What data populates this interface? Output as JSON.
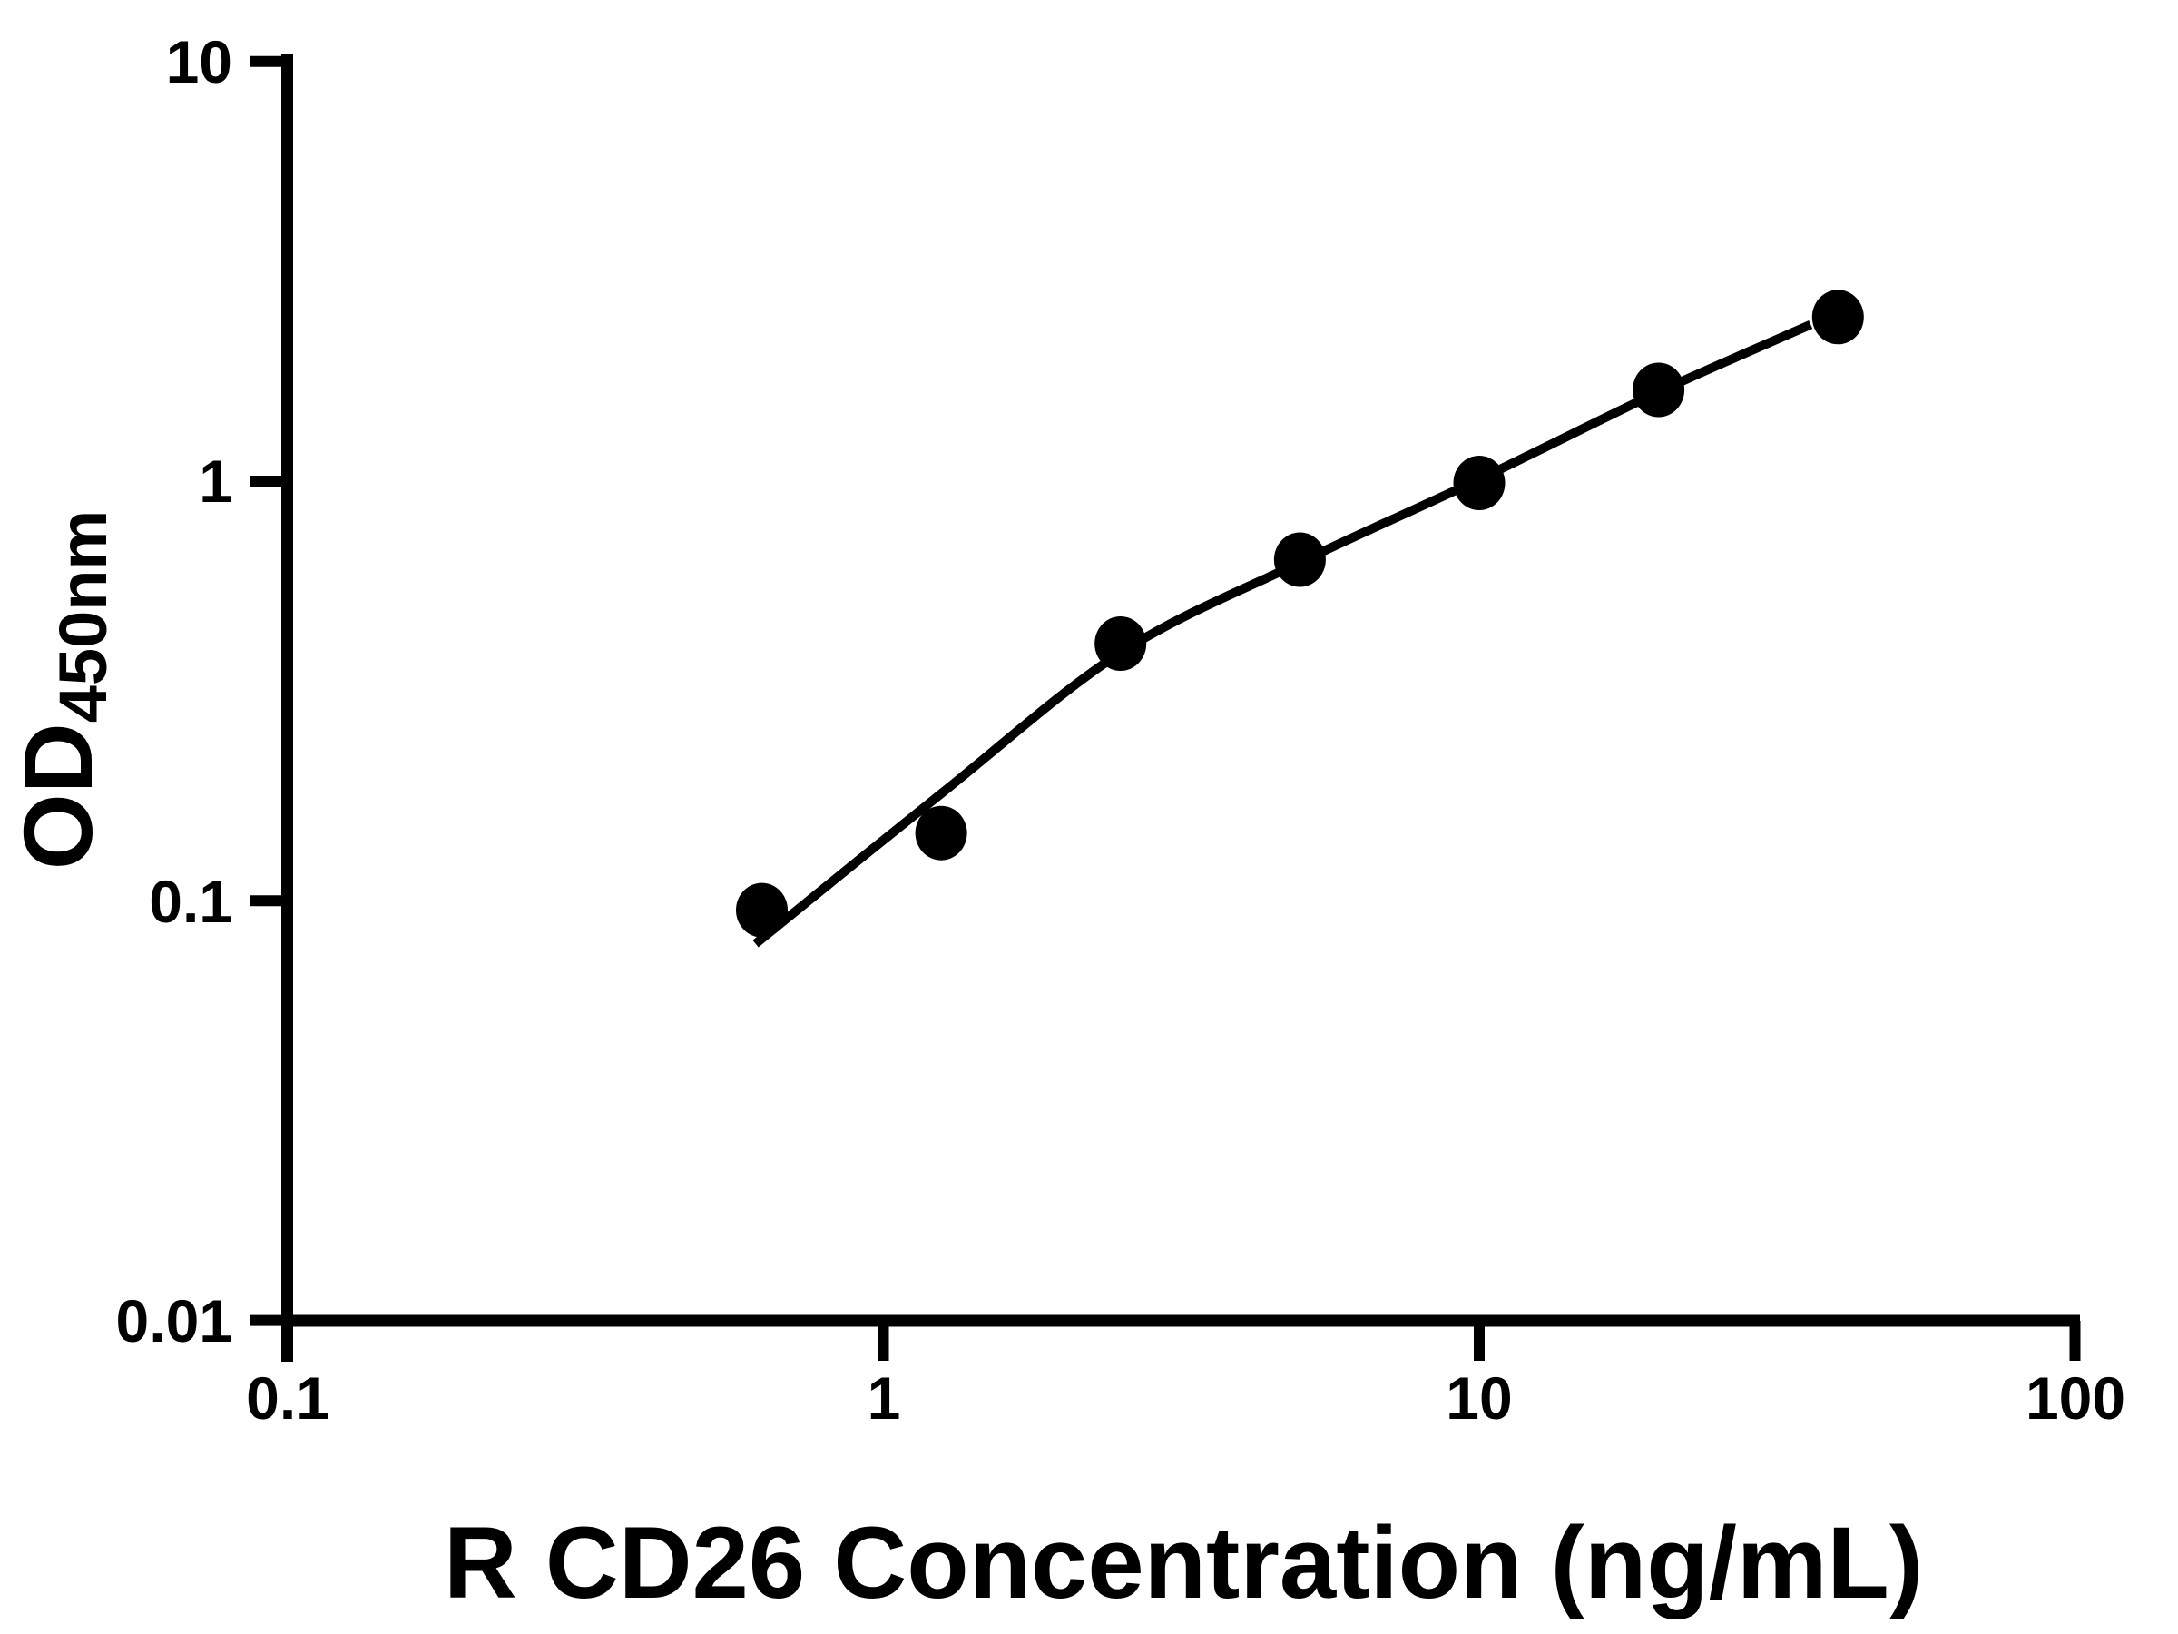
{
  "figure": {
    "background_color": "#ffffff",
    "ink_color": "#000000"
  },
  "chart_data": {
    "type": "scatter",
    "title": "",
    "xlabel": "R CD26 Concentration (ng/mL)",
    "ylabel_base": "OD",
    "ylabel_subscript": "450nm",
    "x_scale": "log",
    "y_scale": "log",
    "xlim": [
      0.1,
      100
    ],
    "ylim": [
      0.01,
      10
    ],
    "grid": false,
    "legend": null,
    "x_ticks": {
      "values": [
        0.1,
        1,
        10,
        100
      ],
      "labels": [
        "0.1",
        "1",
        "10",
        "100"
      ]
    },
    "y_ticks": {
      "values": [
        0.01,
        0.1,
        1,
        10
      ],
      "labels": [
        "0.01",
        "0.1",
        "1",
        "10"
      ]
    },
    "series": [
      {
        "name": "standard-points",
        "type": "scatter",
        "marker": "filled-circle",
        "color": "#000000",
        "x": [
          0.625,
          1.25,
          2.5,
          5,
          10,
          20,
          40
        ],
        "y": [
          0.095,
          0.145,
          0.41,
          0.65,
          0.99,
          1.65,
          2.46
        ]
      },
      {
        "name": "fitted-curve",
        "type": "line",
        "color": "#000000",
        "x": [
          0.61,
          1.25,
          2.5,
          5,
          10,
          20,
          36
        ],
        "y": [
          0.079,
          0.18,
          0.39,
          0.64,
          1.01,
          1.63,
          2.36
        ]
      }
    ]
  }
}
